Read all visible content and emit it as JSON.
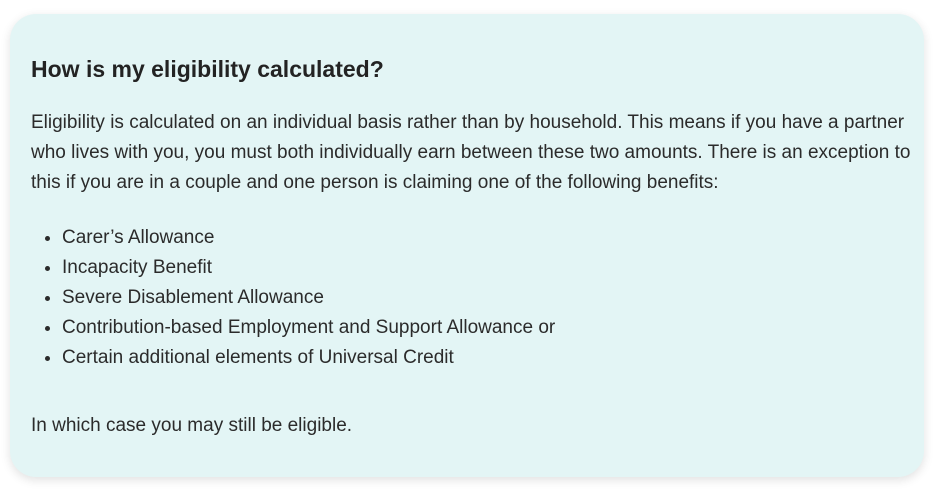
{
  "card": {
    "title": "How is my eligibility calculated?",
    "intro": "Eligibility is calculated on an individual basis rather than by household. This means if you have a partner who lives with you, you must both individually earn between these two amounts. There is an exception to this if you are in a couple and one person is claiming one of the following benefits:",
    "benefits": [
      "Carer’s Allowance",
      "Incapacity Benefit",
      "Severe Disablement Allowance",
      "Contribution-based Employment and Support Allowance or",
      "Certain additional elements of Universal Credit"
    ],
    "outro": "In which case you may still be eligible."
  },
  "colors": {
    "card_background": "#e3f5f5",
    "text": "#2b2b2b"
  }
}
